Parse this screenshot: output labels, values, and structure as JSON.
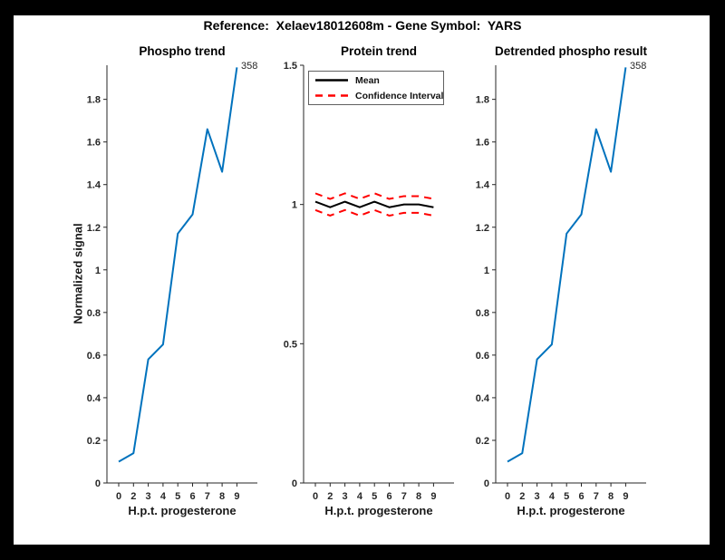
{
  "figure": {
    "title": "Reference:  Xelaev18012608m - Gene Symbol:  YARS",
    "background_color": "#ffffff",
    "frame_color": "#000000",
    "axis_color": "#262626"
  },
  "chart_data": [
    {
      "type": "line",
      "title": "Phospho trend",
      "xlabel": "H.p.t. progesterone",
      "ylabel": "Normalized signal",
      "x_tick_labels": [
        "0",
        "2",
        "3",
        "4",
        "5",
        "6",
        "7",
        "8",
        "9"
      ],
      "y_tick_values": [
        0,
        0.2,
        0.4,
        0.6,
        0.8,
        1,
        1.2,
        1.4,
        1.6,
        1.8
      ],
      "y_tick_labels": [
        "0",
        "0.2",
        "0.4",
        "0.6",
        "0.8",
        "1",
        "1.2",
        "1.4",
        "1.6",
        "1.8"
      ],
      "ylim": [
        0,
        1.96
      ],
      "grid": false,
      "series": [
        {
          "color": "#0072BD",
          "style": "solid",
          "values": [
            0.1,
            0.14,
            0.58,
            0.65,
            1.17,
            1.26,
            1.66,
            1.46,
            1.95
          ]
        }
      ],
      "annotation": "358"
    },
    {
      "type": "line",
      "title": "Protein trend",
      "xlabel": "H.p.t. progesterone",
      "ylabel": "",
      "x_tick_labels": [
        "0",
        "2",
        "3",
        "4",
        "5",
        "6",
        "7",
        "8",
        "9"
      ],
      "y_tick_values": [
        0,
        0.5,
        1,
        1.5
      ],
      "y_tick_labels": [
        "0",
        "0.5",
        "1",
        "1.5"
      ],
      "ylim": [
        0,
        1.5
      ],
      "grid": false,
      "legend_position": "upper-left",
      "series": [
        {
          "name": "Mean",
          "color": "#000000",
          "style": "solid",
          "values": [
            1.01,
            0.99,
            1.01,
            0.99,
            1.01,
            0.99,
            1.0,
            1.0,
            0.99
          ]
        },
        {
          "name": "Confidence Interval",
          "color": "#FF0000",
          "style": "dashed",
          "values_upper": [
            1.04,
            1.02,
            1.04,
            1.02,
            1.04,
            1.02,
            1.03,
            1.03,
            1.02
          ],
          "values_lower": [
            0.98,
            0.96,
            0.98,
            0.96,
            0.98,
            0.96,
            0.97,
            0.97,
            0.96
          ]
        }
      ]
    },
    {
      "type": "line",
      "title": "Detrended phospho result",
      "xlabel": "H.p.t. progesterone",
      "ylabel": "",
      "x_tick_labels": [
        "0",
        "2",
        "3",
        "4",
        "5",
        "6",
        "7",
        "8",
        "9"
      ],
      "y_tick_values": [
        0,
        0.2,
        0.4,
        0.6,
        0.8,
        1,
        1.2,
        1.4,
        1.6,
        1.8
      ],
      "y_tick_labels": [
        "0",
        "0.2",
        "0.4",
        "0.6",
        "0.8",
        "1",
        "1.2",
        "1.4",
        "1.6",
        "1.8"
      ],
      "ylim": [
        0,
        1.96
      ],
      "grid": false,
      "series": [
        {
          "color": "#0072BD",
          "style": "solid",
          "values": [
            0.1,
            0.14,
            0.58,
            0.65,
            1.17,
            1.26,
            1.66,
            1.46,
            1.95
          ]
        }
      ],
      "annotation": "358"
    }
  ]
}
